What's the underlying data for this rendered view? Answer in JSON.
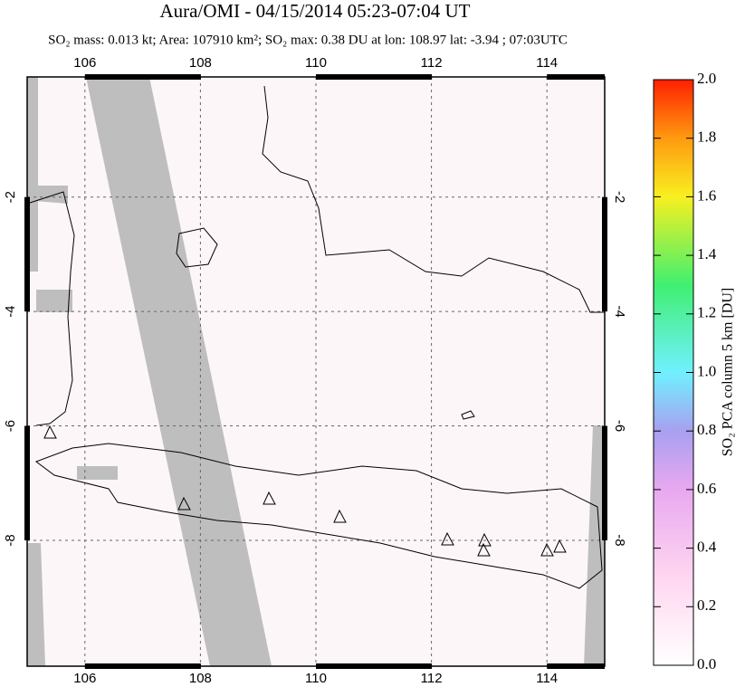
{
  "chart_data": {
    "type": "map",
    "title": "Aura/OMI - 04/15/2014 05:23-07:04 UT",
    "subtitle": "SO₂ mass: 0.013 kt; Area: 107910 km²; SO₂ max: 0.38 DU at lon: 108.97 lat: -3.94 ; 07:03UTC",
    "xlim": [
      105,
      115
    ],
    "xticks": [
      106,
      108,
      110,
      112,
      114
    ],
    "ylim": [
      -10.2,
      0.1
    ],
    "yticks": [
      -2,
      -4,
      -6,
      -8
    ],
    "grid": true,
    "colorbar": {
      "label": "SO₂ PCA column 5 km [DU]",
      "lim": [
        0,
        2
      ],
      "ticks": [
        {
          "value": 0,
          "label": "0.0"
        },
        0.2,
        0.4,
        0.6,
        0.8,
        {
          "value": 1,
          "label": "1.0"
        },
        1.2,
        1.4,
        1.6,
        1.8,
        {
          "value": 2,
          "label": "2.0"
        }
      ]
    }
  }
}
